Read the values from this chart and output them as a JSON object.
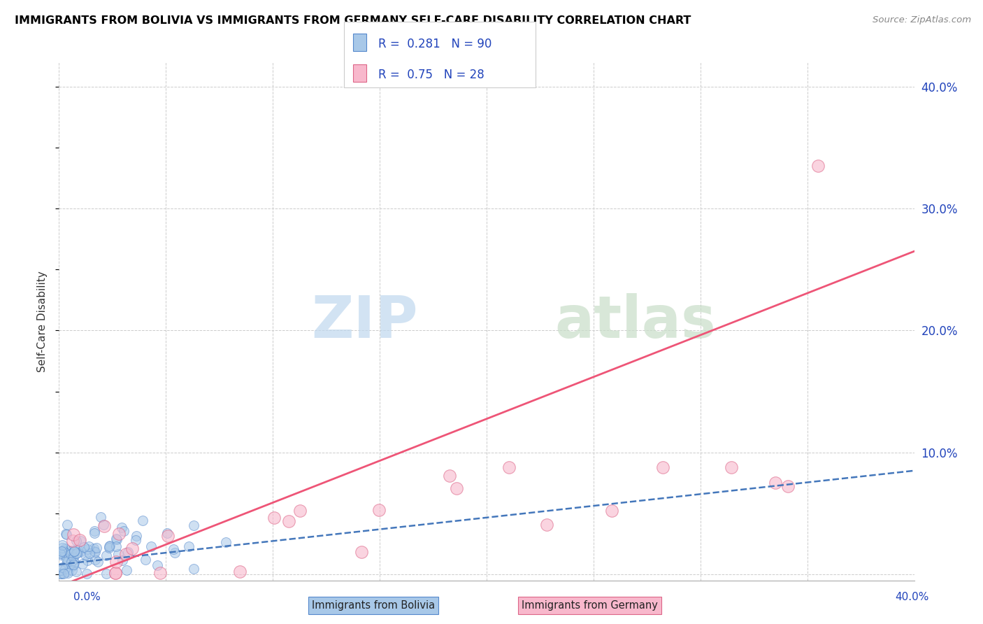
{
  "title": "IMMIGRANTS FROM BOLIVIA VS IMMIGRANTS FROM GERMANY SELF-CARE DISABILITY CORRELATION CHART",
  "source": "Source: ZipAtlas.com",
  "ylabel": "Self-Care Disability",
  "xlim": [
    0.0,
    0.4
  ],
  "ylim": [
    -0.005,
    0.42
  ],
  "yticks": [
    0.0,
    0.1,
    0.2,
    0.3,
    0.4
  ],
  "ytick_labels": [
    "",
    "10.0%",
    "20.0%",
    "30.0%",
    "40.0%"
  ],
  "bolivia_color": "#a8c8e8",
  "bolivia_edge": "#5588cc",
  "germany_color": "#f8b8cc",
  "germany_edge": "#dd6688",
  "bolivia_R": 0.281,
  "bolivia_N": 90,
  "germany_R": 0.75,
  "germany_N": 28,
  "legend_color": "#2244bb",
  "background_color": "#ffffff",
  "grid_color": "#cccccc",
  "bolivia_line_color": "#4477bb",
  "germany_line_color": "#ee5577",
  "watermark_zip_color": "#c8dff0",
  "watermark_atlas_color": "#d5e8d5"
}
